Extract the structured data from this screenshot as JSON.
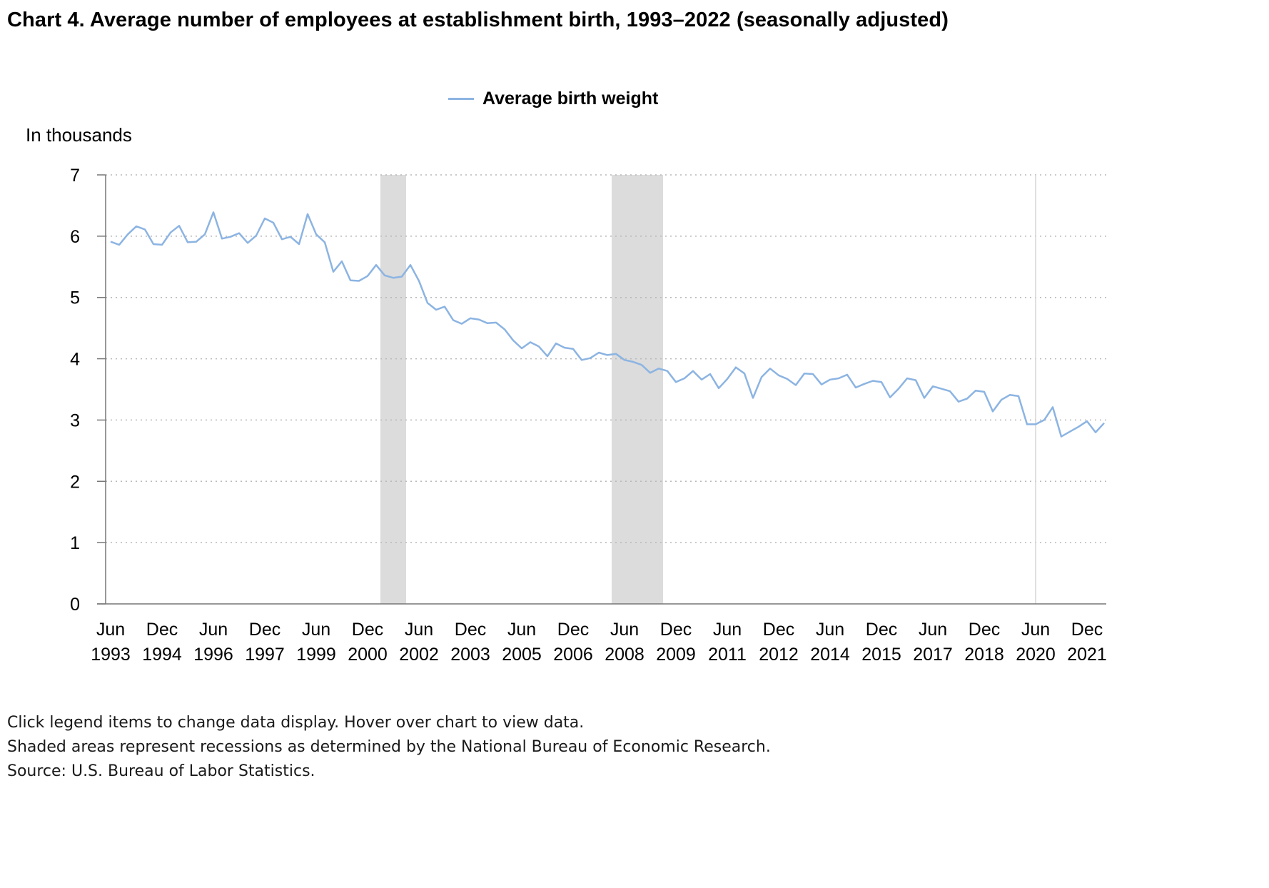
{
  "title": "Chart 4. Average number of employees at establishment birth, 1993–2022 (seasonally adjusted)",
  "y_unit_label": "In thousands",
  "legend": {
    "items": [
      {
        "label": "Average birth weight",
        "color": "#8cb4e2"
      }
    ]
  },
  "notes": [
    "Click legend items to change data display. Hover over chart to view data.",
    "Shaded areas represent recessions as determined by the National Bureau of Economic Research.",
    "Source: U.S. Bureau of Labor Statistics."
  ],
  "colors": {
    "line": "#8cb4e2",
    "recession": "#dcdcdc",
    "grid": "#b8b8b8",
    "axis": "#777777"
  },
  "chart_data": {
    "type": "line",
    "x_unit": "quarter",
    "x_start": "Jun 1993",
    "x_end": "Dec 2022",
    "ylabel": "In thousands",
    "ylim": [
      0,
      7
    ],
    "yticks": [
      0,
      1,
      2,
      3,
      4,
      5,
      6,
      7
    ],
    "grid": true,
    "grid_style": "dotted",
    "legend_position": "top-center",
    "x_tick_labels": [
      {
        "month": "Jun",
        "year": "1993",
        "quarter_index": 0
      },
      {
        "month": "Dec",
        "year": "1994",
        "quarter_index": 6
      },
      {
        "month": "Jun",
        "year": "1996",
        "quarter_index": 12
      },
      {
        "month": "Dec",
        "year": "1997",
        "quarter_index": 18
      },
      {
        "month": "Jun",
        "year": "1999",
        "quarter_index": 24
      },
      {
        "month": "Dec",
        "year": "2000",
        "quarter_index": 30
      },
      {
        "month": "Jun",
        "year": "2002",
        "quarter_index": 36
      },
      {
        "month": "Dec",
        "year": "2003",
        "quarter_index": 42
      },
      {
        "month": "Jun",
        "year": "2005",
        "quarter_index": 48
      },
      {
        "month": "Dec",
        "year": "2006",
        "quarter_index": 54
      },
      {
        "month": "Jun",
        "year": "2008",
        "quarter_index": 60
      },
      {
        "month": "Dec",
        "year": "2009",
        "quarter_index": 66
      },
      {
        "month": "Jun",
        "year": "2011",
        "quarter_index": 72
      },
      {
        "month": "Dec",
        "year": "2012",
        "quarter_index": 78
      },
      {
        "month": "Jun",
        "year": "2014",
        "quarter_index": 84
      },
      {
        "month": "Dec",
        "year": "2015",
        "quarter_index": 90
      },
      {
        "month": "Jun",
        "year": "2017",
        "quarter_index": 96
      },
      {
        "month": "Dec",
        "year": "2018",
        "quarter_index": 102
      },
      {
        "month": "Jun",
        "year": "2020",
        "quarter_index": 108
      },
      {
        "month": "Dec",
        "year": "2021",
        "quarter_index": 114
      }
    ],
    "recessions": [
      {
        "start_quarter_index": 31.5,
        "end_quarter_index": 34.5
      },
      {
        "start_quarter_index": 58.5,
        "end_quarter_index": 64.5
      }
    ],
    "vertical_marker_quarter_index": 108,
    "series": [
      {
        "name": "Average birth weight",
        "values": [
          5.91,
          5.86,
          6.03,
          6.16,
          6.11,
          5.87,
          5.86,
          6.06,
          6.17,
          5.9,
          5.91,
          6.03,
          6.39,
          5.96,
          5.99,
          6.05,
          5.89,
          6.01,
          6.29,
          6.22,
          5.95,
          5.99,
          5.87,
          6.36,
          6.03,
          5.9,
          5.42,
          5.59,
          5.28,
          5.27,
          5.35,
          5.53,
          5.36,
          5.32,
          5.34,
          5.53,
          5.27,
          4.91,
          4.8,
          4.85,
          4.63,
          4.57,
          4.66,
          4.64,
          4.58,
          4.59,
          4.48,
          4.3,
          4.17,
          4.27,
          4.2,
          4.04,
          4.25,
          4.18,
          4.16,
          3.98,
          4.01,
          4.1,
          4.06,
          4.08,
          3.98,
          3.95,
          3.9,
          3.77,
          3.84,
          3.8,
          3.62,
          3.68,
          3.8,
          3.66,
          3.75,
          3.52,
          3.67,
          3.86,
          3.76,
          3.36,
          3.7,
          3.84,
          3.73,
          3.67,
          3.57,
          3.76,
          3.75,
          3.58,
          3.66,
          3.68,
          3.74,
          3.53,
          3.59,
          3.64,
          3.62,
          3.37,
          3.51,
          3.68,
          3.65,
          3.36,
          3.55,
          3.51,
          3.47,
          3.3,
          3.35,
          3.48,
          3.46,
          3.14,
          3.33,
          3.41,
          3.39,
          2.93,
          2.93,
          3.0,
          3.21,
          2.73,
          2.81,
          2.89,
          2.98,
          2.8,
          2.95
        ]
      }
    ]
  }
}
